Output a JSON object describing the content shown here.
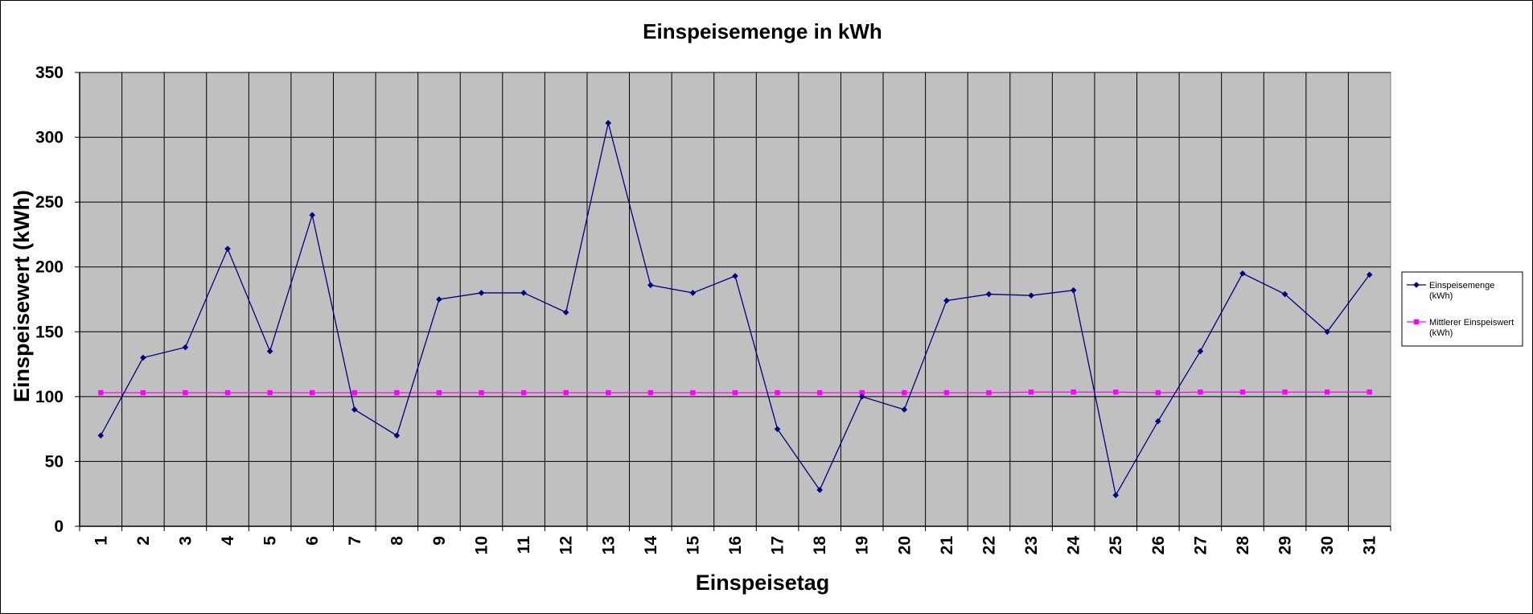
{
  "chart_data": {
    "type": "line",
    "title": "Einspeisemenge in kWh",
    "xlabel": "Einspeisetag",
    "ylabel": "Einspeisewert  (kWh)",
    "categories": [
      "1",
      "2",
      "3",
      "4",
      "5",
      "6",
      "7",
      "8",
      "9",
      "10",
      "11",
      "12",
      "13",
      "14",
      "15",
      "16",
      "17",
      "18",
      "19",
      "20",
      "21",
      "22",
      "23",
      "24",
      "25",
      "26",
      "27",
      "28",
      "29",
      "30",
      "31"
    ],
    "ylim": [
      0,
      350
    ],
    "yticks": [
      0,
      50,
      100,
      150,
      200,
      250,
      300,
      350
    ],
    "grid": true,
    "legend_position": "right",
    "series": [
      {
        "name": "Einspeisemenge (kWh)",
        "legend_lines": [
          "Einspeisemenge",
          "(kWh)"
        ],
        "color": "#000080",
        "marker": "diamond",
        "values": [
          70,
          130,
          138,
          214,
          135,
          240,
          90,
          70,
          175,
          180,
          180,
          165,
          311,
          186,
          180,
          193,
          75,
          28,
          100,
          90,
          174,
          179,
          178,
          182,
          24,
          81,
          135,
          195,
          179,
          150,
          194
        ]
      },
      {
        "name": "Mittlerer Einspeiswert (kWh)",
        "legend_lines": [
          "Mittlerer Einspeiswert",
          "(kWh)"
        ],
        "color": "#ff00ff",
        "marker": "square",
        "values": [
          103,
          103,
          103,
          103,
          103,
          103,
          103,
          103,
          103,
          103,
          103,
          103,
          103,
          103,
          103,
          103,
          103,
          103,
          103,
          103,
          103,
          103,
          103.5,
          103.5,
          103.5,
          103,
          103.5,
          103.5,
          103.5,
          103.5,
          103.5
        ]
      }
    ]
  }
}
